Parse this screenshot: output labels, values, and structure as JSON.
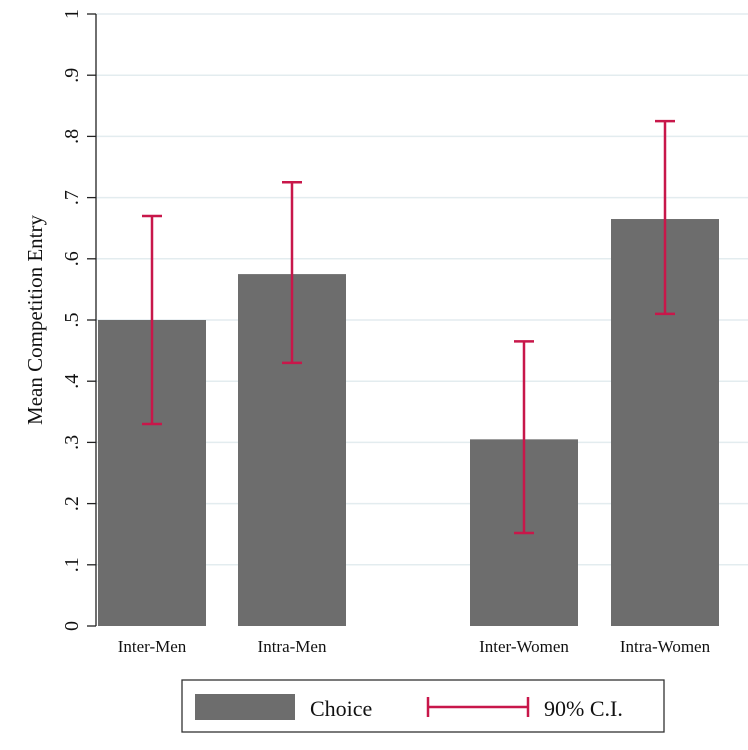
{
  "chart_data": {
    "type": "bar",
    "categories": [
      "Inter-Men",
      "Intra-Men",
      "Inter-Women",
      "Intra-Women"
    ],
    "series": [
      {
        "name": "Choice",
        "values": [
          0.5,
          0.575,
          0.305,
          0.665
        ],
        "color": "#6d6d6d"
      }
    ],
    "error_bars": {
      "name": "90% C.I.",
      "color": "#c8174a",
      "low": [
        0.33,
        0.43,
        0.152,
        0.51
      ],
      "high": [
        0.67,
        0.725,
        0.465,
        0.825
      ]
    },
    "groups": [
      [
        "Inter-Men",
        "Intra-Men"
      ],
      [
        "Inter-Women",
        "Intra-Women"
      ]
    ],
    "ylabel": "Mean Competition Entry",
    "ylim": [
      0,
      1
    ],
    "yticks": [
      0,
      0.1,
      0.2,
      0.3,
      0.4,
      0.5,
      0.6,
      0.7,
      0.8,
      0.9,
      1
    ],
    "ytick_labels": [
      "0",
      ".1",
      ".2",
      ".3",
      ".4",
      ".5",
      ".6",
      ".7",
      ".8",
      ".9",
      "1"
    ],
    "grid": true,
    "grid_color": "#e3ecef",
    "legend_position": "bottom",
    "legend": [
      {
        "label": "Choice",
        "kind": "bar"
      },
      {
        "label": "90% C.I.",
        "kind": "errorbar"
      }
    ]
  }
}
